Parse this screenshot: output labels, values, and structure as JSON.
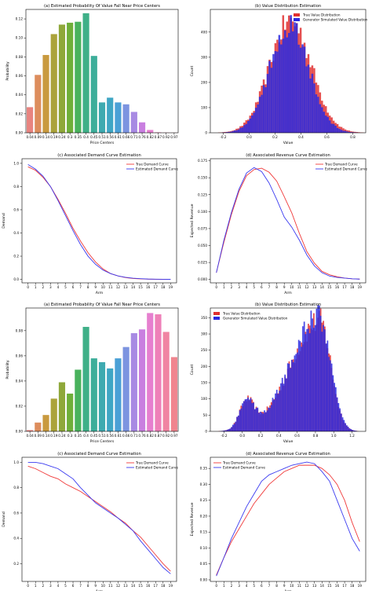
{
  "chart_data": [
    {
      "type": "bar",
      "title": "(a) Estimated Probability Of Value Fall Near Price Centers",
      "xlabel": "Price Centers",
      "ylabel": "Probability",
      "categories": [
        "0.04",
        "0.09",
        "0.14",
        "0.19",
        "0.24",
        "0.3",
        "0.35",
        "0.4",
        "0.45",
        "0.51",
        "0.56",
        "0.61",
        "0.66",
        "0.71",
        "0.76",
        "0.82",
        "0.87",
        "0.92",
        "0.97"
      ],
      "values": [
        0.027,
        0.061,
        0.082,
        0.104,
        0.114,
        0.116,
        0.117,
        0.126,
        0.081,
        0.032,
        0.037,
        0.032,
        0.03,
        0.022,
        0.011,
        0.003,
        0.0005,
        0.0002,
        0.0001
      ],
      "colors": [
        "#e88480",
        "#dd8d5d",
        "#c99a3f",
        "#aba33b",
        "#8fa83a",
        "#6faf3a",
        "#49b25d",
        "#3fb088",
        "#3dae9a",
        "#3eaab0",
        "#3fa6c4",
        "#4aa0d6",
        "#7c94e0",
        "#a88ae3",
        "#c97fe0",
        "#e67fcf",
        "#ee80b8",
        "#f084a2",
        "#f0858f"
      ],
      "ylim": [
        0,
        0.13
      ],
      "yticks": [
        0.0,
        0.02,
        0.04,
        0.06,
        0.08,
        0.1,
        0.12
      ],
      "ytick_labels": [
        "0.00",
        "0.02",
        "0.04",
        "0.06",
        "0.08",
        "0.10",
        "0.12"
      ]
    },
    {
      "type": "bar",
      "title": "(b) Value Distribution Estimation",
      "xlabel": "Value",
      "ylabel": "Count",
      "xlim": [
        -0.3,
        0.9
      ],
      "ylim": [
        0,
        490
      ],
      "xticks": [
        -0.2,
        0.0,
        0.2,
        0.4,
        0.6,
        0.8
      ],
      "xtick_labels": [
        "-0.2",
        "0.0",
        "0.2",
        "0.4",
        "0.6",
        "0.8"
      ],
      "yticks": [
        0,
        100,
        200,
        300,
        400
      ],
      "ytick_labels": [
        "0",
        "100",
        "200",
        "300",
        "400"
      ],
      "bin_width": 0.015,
      "legend": "top-right",
      "series": [
        {
          "name": "True Value Distribution",
          "color": "#e03030",
          "center": 0.32,
          "spread": 0.16,
          "peak": 445
        },
        {
          "name": "Generator Simulated Value Distribution",
          "color": "#2a2ae0",
          "center": 0.31,
          "spread": 0.15,
          "peak": 430
        }
      ]
    },
    {
      "type": "line",
      "title": "(c) Associated Demand Curve Estimation",
      "xlabel": "Arm",
      "ylabel": "Demand",
      "x": [
        0,
        1,
        2,
        3,
        4,
        5,
        6,
        7,
        8,
        9,
        10,
        11,
        12,
        13,
        14,
        15,
        16,
        17,
        18,
        19
      ],
      "xlim": [
        -0.8,
        19.8
      ],
      "ylim": [
        -0.03,
        1.04
      ],
      "yticks": [
        0.0,
        0.2,
        0.4,
        0.6,
        0.8,
        1.0
      ],
      "ytick_labels": [
        "0.0",
        "0.2",
        "0.4",
        "0.6",
        "0.8",
        "1.0"
      ],
      "legend": "top-right",
      "series": [
        {
          "name": "True Demand Curve",
          "color": "#f03a3a",
          "values": [
            0.97,
            0.94,
            0.88,
            0.8,
            0.69,
            0.57,
            0.44,
            0.33,
            0.23,
            0.15,
            0.09,
            0.05,
            0.03,
            0.015,
            0.008,
            0.004,
            0.002,
            0.001,
            0.0005,
            0.0003
          ]
        },
        {
          "name": "Estimated Demand Curve",
          "color": "#3a3af0",
          "values": [
            0.99,
            0.95,
            0.89,
            0.8,
            0.68,
            0.55,
            0.42,
            0.3,
            0.2,
            0.13,
            0.08,
            0.05,
            0.03,
            0.018,
            0.01,
            0.006,
            0.003,
            0.002,
            0.001,
            0.0005
          ]
        }
      ]
    },
    {
      "type": "line",
      "title": "(d) Associated Revenue Curve Estimation",
      "xlabel": "Arm",
      "ylabel": "Expected Revenue",
      "x": [
        0,
        1,
        2,
        3,
        4,
        5,
        6,
        7,
        8,
        9,
        10,
        11,
        12,
        13,
        14,
        15,
        16,
        17,
        18,
        19
      ],
      "xlim": [
        -0.8,
        19.8
      ],
      "ylim": [
        -0.005,
        0.178
      ],
      "yticks": [
        0.0,
        0.025,
        0.05,
        0.075,
        0.1,
        0.125,
        0.15,
        0.175
      ],
      "ytick_labels": [
        "0.000",
        "0.025",
        "0.050",
        "0.075",
        "0.100",
        "0.125",
        "0.150",
        "0.175"
      ],
      "legend": "top-right",
      "series": [
        {
          "name": "True Demand Curve",
          "color": "#f03a3a",
          "values": [
            0.01,
            0.055,
            0.096,
            0.13,
            0.153,
            0.162,
            0.164,
            0.158,
            0.145,
            0.122,
            0.098,
            0.068,
            0.041,
            0.024,
            0.012,
            0.007,
            0.004,
            0.002,
            0.001,
            0.0005
          ]
        },
        {
          "name": "Estimated Demand Curve",
          "color": "#3a3af0",
          "values": [
            0.01,
            0.058,
            0.099,
            0.133,
            0.157,
            0.165,
            0.159,
            0.142,
            0.118,
            0.092,
            0.077,
            0.058,
            0.036,
            0.02,
            0.01,
            0.005,
            0.003,
            0.002,
            0.001,
            0.0005
          ]
        }
      ]
    },
    {
      "type": "bar",
      "title": "(a) Estimated Probability Of Value Fall Near Price Centers",
      "xlabel": "Price Centers",
      "ylabel": "Probability",
      "categories": [
        "0.04",
        "0.09",
        "0.14",
        "0.19",
        "0.24",
        "0.3",
        "0.35",
        "0.4",
        "0.45",
        "0.51",
        "0.56",
        "0.61",
        "0.66",
        "0.71",
        "0.76",
        "0.82",
        "0.87",
        "0.92",
        "0.97"
      ],
      "values": [
        0.001,
        0.007,
        0.013,
        0.026,
        0.039,
        0.03,
        0.049,
        0.083,
        0.058,
        0.055,
        0.05,
        0.058,
        0.067,
        0.078,
        0.081,
        0.094,
        0.093,
        0.079,
        0.059
      ],
      "colors": [
        "#e88480",
        "#dd8d5d",
        "#c99a3f",
        "#aba33b",
        "#8fa83a",
        "#6faf3a",
        "#49b25d",
        "#3fb088",
        "#3dae9a",
        "#3eaab0",
        "#3fa6c4",
        "#4aa0d6",
        "#7c94e0",
        "#a88ae3",
        "#c97fe0",
        "#e67fcf",
        "#ee80b8",
        "#f084a2",
        "#f0858f"
      ],
      "ylim": [
        0,
        0.098
      ],
      "yticks": [
        0.0,
        0.02,
        0.04,
        0.06,
        0.08
      ],
      "ytick_labels": [
        "0.00",
        "0.02",
        "0.04",
        "0.06",
        "0.08"
      ]
    },
    {
      "type": "bar",
      "title": "(b) Value Distribution Estimation",
      "xlabel": "Value",
      "ylabel": "Count",
      "xlim": [
        -0.35,
        1.35
      ],
      "ylim": [
        0,
        380
      ],
      "xticks": [
        -0.2,
        0.0,
        0.2,
        0.4,
        0.6,
        0.8,
        1.0,
        1.2
      ],
      "xtick_labels": [
        "-0.2",
        "0.0",
        "0.2",
        "0.4",
        "0.6",
        "0.8",
        "1.0",
        "1.2"
      ],
      "yticks": [
        0,
        50,
        100,
        150,
        200,
        250,
        300,
        350
      ],
      "ytick_labels": [
        "0",
        "50",
        "100",
        "150",
        "200",
        "250",
        "300",
        "350"
      ],
      "bin_width": 0.015,
      "legend": "top-left",
      "series": [
        {
          "name": "True Value Distribution",
          "color": "#e03030",
          "center": 0.72,
          "spread": 0.25,
          "peak": 340
        },
        {
          "name": "Generator Simulated Value Distribution",
          "color": "#2a2ae0",
          "center": 0.72,
          "spread": 0.24,
          "peak": 350
        }
      ]
    },
    {
      "type": "line",
      "title": "(c) Associated Demand Curve Estimation",
      "xlabel": "Arm",
      "ylabel": "Demand",
      "x": [
        0,
        1,
        2,
        3,
        4,
        5,
        6,
        7,
        8,
        9,
        10,
        11,
        12,
        13,
        14,
        15,
        16,
        17,
        18,
        19
      ],
      "xlim": [
        -0.8,
        19.8
      ],
      "ylim": [
        0.06,
        1.04
      ],
      "yticks": [
        0.2,
        0.4,
        0.6,
        0.8,
        1.0
      ],
      "ytick_labels": [
        "0.2",
        "0.4",
        "0.6",
        "0.8",
        "1.0"
      ],
      "legend": "top-right",
      "series": [
        {
          "name": "True Demand Curve",
          "color": "#f03a3a",
          "values": [
            0.97,
            0.95,
            0.92,
            0.89,
            0.87,
            0.83,
            0.8,
            0.77,
            0.73,
            0.69,
            0.65,
            0.61,
            0.56,
            0.52,
            0.46,
            0.41,
            0.34,
            0.27,
            0.2,
            0.14
          ]
        },
        {
          "name": "Estimated Demand Curve",
          "color": "#3a3af0",
          "values": [
            1.0,
            1.0,
            0.99,
            0.97,
            0.95,
            0.91,
            0.87,
            0.8,
            0.74,
            0.68,
            0.64,
            0.6,
            0.56,
            0.51,
            0.46,
            0.38,
            0.31,
            0.24,
            0.17,
            0.12
          ]
        }
      ]
    },
    {
      "type": "line",
      "title": "(d) Associated Revenue Curve Estimation",
      "xlabel": "Arm",
      "ylabel": "Expected Revenue",
      "x": [
        0,
        1,
        2,
        3,
        4,
        5,
        6,
        7,
        8,
        9,
        10,
        11,
        12,
        13,
        14,
        15,
        16,
        17,
        18,
        19
      ],
      "xlim": [
        -0.8,
        19.8
      ],
      "ylim": [
        -0.005,
        0.385
      ],
      "yticks": [
        0.0,
        0.05,
        0.1,
        0.15,
        0.2,
        0.25,
        0.3,
        0.35
      ],
      "ytick_labels": [
        "0.00",
        "0.05",
        "0.10",
        "0.15",
        "0.20",
        "0.25",
        "0.30",
        "0.35"
      ],
      "legend": "top-left",
      "series": [
        {
          "name": "True Demand Curve",
          "color": "#f03a3a",
          "values": [
            0.015,
            0.07,
            0.12,
            0.16,
            0.2,
            0.24,
            0.27,
            0.3,
            0.32,
            0.34,
            0.35,
            0.36,
            0.36,
            0.36,
            0.35,
            0.33,
            0.3,
            0.25,
            0.18,
            0.12
          ]
        },
        {
          "name": "Estimated Demand Curve",
          "color": "#3a3af0",
          "values": [
            0.012,
            0.07,
            0.13,
            0.18,
            0.23,
            0.27,
            0.31,
            0.33,
            0.34,
            0.35,
            0.36,
            0.365,
            0.37,
            0.365,
            0.34,
            0.31,
            0.25,
            0.19,
            0.13,
            0.09
          ]
        }
      ]
    }
  ]
}
